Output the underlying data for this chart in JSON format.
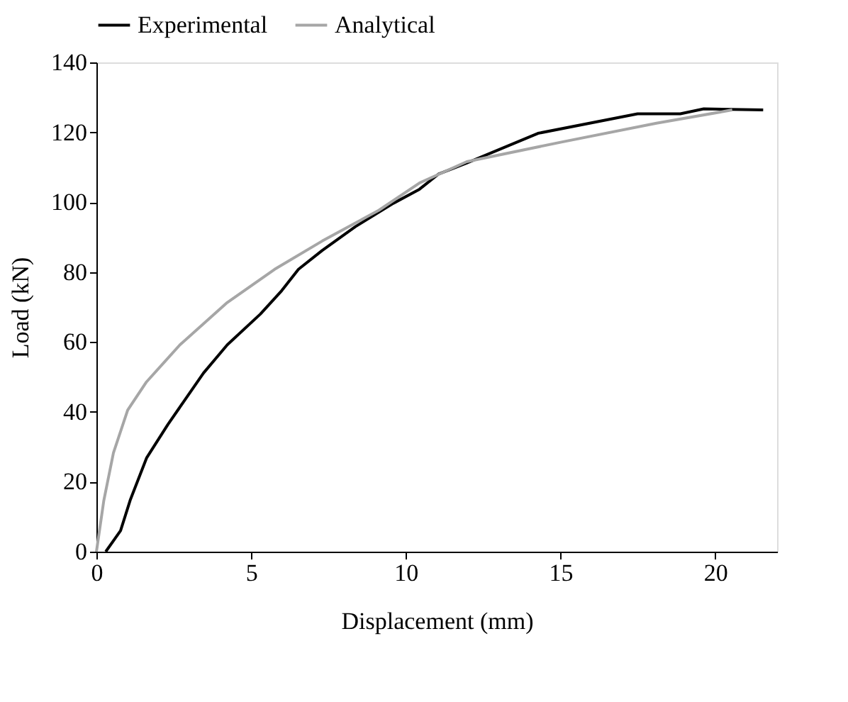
{
  "chart_data": {
    "type": "line",
    "xlabel": "Displacement (mm)",
    "ylabel": "Load (kN)",
    "xlim": [
      0,
      22
    ],
    "ylim": [
      0,
      140
    ],
    "xticks": [
      0,
      5,
      10,
      15,
      20
    ],
    "yticks": [
      0,
      20,
      40,
      60,
      80,
      100,
      120,
      140
    ],
    "grid": false,
    "legend": "top",
    "marker": "none",
    "line_style": "solid",
    "series": [
      {
        "name": "Experimental",
        "color": "#000000",
        "x": [
          0.3,
          0.78,
          1.09,
          1.62,
          2.31,
          3.46,
          4.23,
          5.3,
          5.99,
          6.53,
          7.3,
          8.37,
          9.6,
          10.44,
          11.05,
          11.97,
          14.27,
          17.49,
          18.87,
          19.63,
          21.55
        ],
        "values": [
          0,
          6,
          14.7,
          26.8,
          36.4,
          51.1,
          59.2,
          68,
          74.7,
          80.8,
          86.2,
          93,
          99.7,
          103.7,
          108,
          111.2,
          119.7,
          125.3,
          125.3,
          126.7,
          126.4
        ]
      },
      {
        "name": "Analytical",
        "color": "#a6a6a6",
        "x": [
          0,
          0.24,
          0.55,
          1.01,
          1.62,
          2.7,
          4.23,
          5.76,
          7.3,
          9.13,
          10.44,
          11.97,
          15.03,
          18.1,
          20.55
        ],
        "values": [
          0,
          14.7,
          28.3,
          40.5,
          48.6,
          59.2,
          71.3,
          80.8,
          88.9,
          97.7,
          105.5,
          111.6,
          117.2,
          122.6,
          126.4
        ]
      }
    ]
  }
}
